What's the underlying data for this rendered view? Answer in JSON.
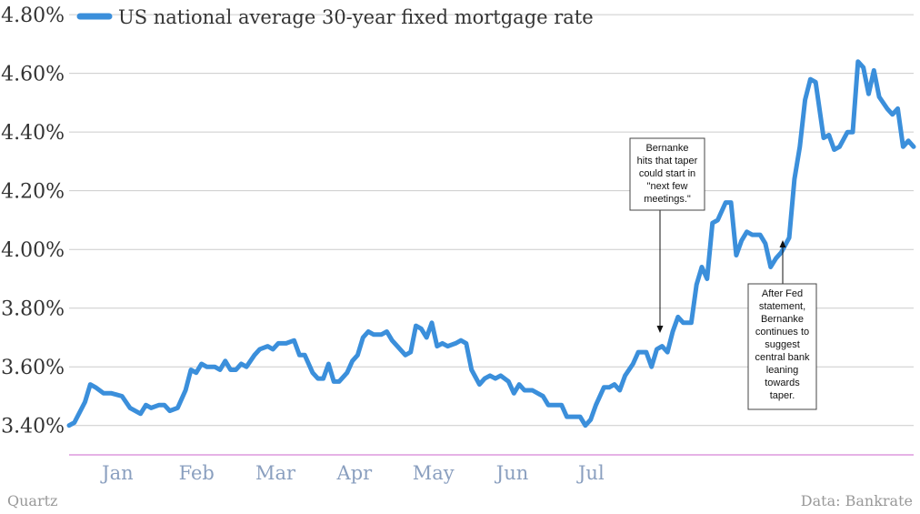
{
  "chart_data": {
    "type": "line",
    "series": [
      {
        "name": "US national average 30-year fixed mortgage rate",
        "color": "#3b8fdb",
        "points": [
          [
            "2013-01-01",
            3.4
          ],
          [
            "2013-01-03",
            3.41
          ],
          [
            "2013-01-07",
            3.48
          ],
          [
            "2013-01-09",
            3.54
          ],
          [
            "2013-01-11",
            3.53
          ],
          [
            "2013-01-14",
            3.51
          ],
          [
            "2013-01-17",
            3.51
          ],
          [
            "2013-01-21",
            3.5
          ],
          [
            "2013-01-24",
            3.46
          ],
          [
            "2013-01-28",
            3.44
          ],
          [
            "2013-01-30",
            3.47
          ],
          [
            "2013-02-01",
            3.46
          ],
          [
            "2013-02-04",
            3.47
          ],
          [
            "2013-02-06",
            3.47
          ],
          [
            "2013-02-08",
            3.45
          ],
          [
            "2013-02-11",
            3.46
          ],
          [
            "2013-02-14",
            3.52
          ],
          [
            "2013-02-16",
            3.59
          ],
          [
            "2013-02-18",
            3.58
          ],
          [
            "2013-02-20",
            3.61
          ],
          [
            "2013-02-22",
            3.6
          ],
          [
            "2013-02-25",
            3.6
          ],
          [
            "2013-02-27",
            3.59
          ],
          [
            "2013-03-01",
            3.62
          ],
          [
            "2013-03-03",
            3.59
          ],
          [
            "2013-03-05",
            3.59
          ],
          [
            "2013-03-07",
            3.61
          ],
          [
            "2013-03-09",
            3.6
          ],
          [
            "2013-03-12",
            3.64
          ],
          [
            "2013-03-14",
            3.66
          ],
          [
            "2013-03-17",
            3.67
          ],
          [
            "2013-03-19",
            3.66
          ],
          [
            "2013-03-21",
            3.68
          ],
          [
            "2013-03-24",
            3.68
          ],
          [
            "2013-03-27",
            3.69
          ],
          [
            "2013-03-29",
            3.64
          ],
          [
            "2013-03-31",
            3.64
          ],
          [
            "2013-04-03",
            3.58
          ],
          [
            "2013-04-05",
            3.56
          ],
          [
            "2013-04-07",
            3.56
          ],
          [
            "2013-04-09",
            3.61
          ],
          [
            "2013-04-11",
            3.55
          ],
          [
            "2013-04-13",
            3.55
          ],
          [
            "2013-04-16",
            3.58
          ],
          [
            "2013-04-18",
            3.62
          ],
          [
            "2013-04-20",
            3.64
          ],
          [
            "2013-04-22",
            3.7
          ],
          [
            "2013-04-24",
            3.72
          ],
          [
            "2013-04-26",
            3.71
          ],
          [
            "2013-04-29",
            3.71
          ],
          [
            "2013-05-01",
            3.72
          ],
          [
            "2013-05-03",
            3.69
          ],
          [
            "2013-05-05",
            3.67
          ],
          [
            "2013-05-08",
            3.64
          ],
          [
            "2013-05-10",
            3.65
          ],
          [
            "2013-05-12",
            3.74
          ],
          [
            "2013-05-14",
            3.73
          ],
          [
            "2013-05-16",
            3.7
          ],
          [
            "2013-05-18",
            3.75
          ],
          [
            "2013-05-20",
            3.67
          ],
          [
            "2013-05-22",
            3.68
          ],
          [
            "2013-05-24",
            3.67
          ],
          [
            "2013-05-27",
            3.68
          ],
          [
            "2013-05-29",
            3.69
          ],
          [
            "2013-05-31",
            3.68
          ],
          [
            "2013-06-02",
            3.59
          ],
          [
            "2013-06-05",
            3.54
          ],
          [
            "2013-06-07",
            3.56
          ],
          [
            "2013-06-09",
            3.57
          ],
          [
            "2013-06-11",
            3.56
          ],
          [
            "2013-06-13",
            3.57
          ],
          [
            "2013-06-16",
            3.55
          ],
          [
            "2013-06-18",
            3.51
          ],
          [
            "2013-06-20",
            3.54
          ],
          [
            "2013-06-22",
            3.52
          ],
          [
            "2013-06-25",
            3.52
          ],
          [
            "2013-06-27",
            3.51
          ],
          [
            "2013-06-29",
            3.5
          ],
          [
            "2013-07-01",
            3.47
          ],
          [
            "2013-07-04",
            3.47
          ],
          [
            "2013-07-06",
            3.47
          ],
          [
            "2013-07-08",
            3.43
          ],
          [
            "2013-07-10",
            3.43
          ],
          [
            "2013-07-13",
            3.43
          ],
          [
            "2013-07-15",
            3.4
          ],
          [
            "2013-07-17",
            3.42
          ],
          [
            "2013-07-19",
            3.47
          ],
          [
            "2013-07-22",
            3.53
          ],
          [
            "2013-07-24",
            3.53
          ],
          [
            "2013-07-26",
            3.54
          ],
          [
            "2013-07-28",
            3.52
          ],
          [
            "2013-07-30",
            3.57
          ],
          [
            "2013-08-02",
            3.61
          ],
          [
            "2013-08-04",
            3.65
          ],
          [
            "2013-08-07",
            3.65
          ],
          [
            "2013-08-09",
            3.6
          ],
          [
            "2013-08-11",
            3.66
          ],
          [
            "2013-08-13",
            3.67
          ],
          [
            "2013-08-15",
            3.65
          ],
          [
            "2013-08-17",
            3.72
          ],
          [
            "2013-08-19",
            3.77
          ],
          [
            "2013-08-21",
            3.75
          ],
          [
            "2013-08-24",
            3.75
          ],
          [
            "2013-08-26",
            3.88
          ],
          [
            "2013-08-28",
            3.94
          ],
          [
            "2013-08-30",
            3.9
          ],
          [
            "2013-09-01",
            4.09
          ],
          [
            "2013-09-03",
            4.1
          ],
          [
            "2013-09-06",
            4.16
          ],
          [
            "2013-09-08",
            4.16
          ],
          [
            "2013-09-10",
            3.98
          ],
          [
            "2013-09-12",
            4.03
          ],
          [
            "2013-09-14",
            4.06
          ],
          [
            "2013-09-16",
            4.05
          ],
          [
            "2013-09-19",
            4.05
          ],
          [
            "2013-09-21",
            4.02
          ],
          [
            "2013-09-23",
            3.94
          ],
          [
            "2013-09-25",
            3.97
          ],
          [
            "2013-09-27",
            3.99
          ],
          [
            "2013-09-30",
            4.04
          ],
          [
            "2013-10-02",
            4.24
          ],
          [
            "2013-10-04",
            4.35
          ],
          [
            "2013-10-06",
            4.51
          ],
          [
            "2013-10-08",
            4.58
          ],
          [
            "2013-10-10",
            4.57
          ],
          [
            "2013-10-13",
            4.38
          ],
          [
            "2013-10-15",
            4.39
          ],
          [
            "2013-10-17",
            4.34
          ],
          [
            "2013-10-19",
            4.35
          ],
          [
            "2013-10-22",
            4.4
          ],
          [
            "2013-10-24",
            4.4
          ],
          [
            "2013-10-26",
            4.64
          ],
          [
            "2013-10-28",
            4.62
          ],
          [
            "2013-10-30",
            4.53
          ],
          [
            "2013-11-01",
            4.61
          ],
          [
            "2013-11-03",
            4.52
          ],
          [
            "2013-11-06",
            4.48
          ],
          [
            "2013-11-08",
            4.46
          ],
          [
            "2013-11-10",
            4.48
          ],
          [
            "2013-11-12",
            4.35
          ],
          [
            "2013-11-14",
            4.37
          ],
          [
            "2013-11-16",
            4.35
          ]
        ]
      }
    ],
    "x_tick_labels": [
      "Jan",
      "Feb",
      "Mar",
      "Apr",
      "May",
      "Jun",
      "Jul"
    ],
    "y_tick_labels": [
      "3.40%",
      "3.60%",
      "3.80%",
      "4.00%",
      "4.20%",
      "4.40%",
      "4.60%",
      "4.80%"
    ],
    "ylim": [
      3.3,
      4.85
    ],
    "xlim": [
      "2013-01-01",
      "2013-11-16"
    ],
    "grid": true,
    "legend_position": "top-left",
    "annotations": [
      {
        "id": "bernanke-hits",
        "lines": [
          "Bernanke",
          "hits that taper",
          "could start in",
          "\"next few",
          "meetings.\""
        ],
        "target": [
          "2013-08-19",
          3.74
        ]
      },
      {
        "id": "after-fed",
        "lines": [
          "After Fed",
          "statement,",
          "Bernanke",
          "continues to",
          "suggest",
          "central bank",
          "leaning",
          "towards",
          "taper."
        ],
        "target": [
          "2013-09-30",
          4.05
        ]
      }
    ],
    "footer_left": "Quartz",
    "footer_right": "Data: Bankrate"
  }
}
